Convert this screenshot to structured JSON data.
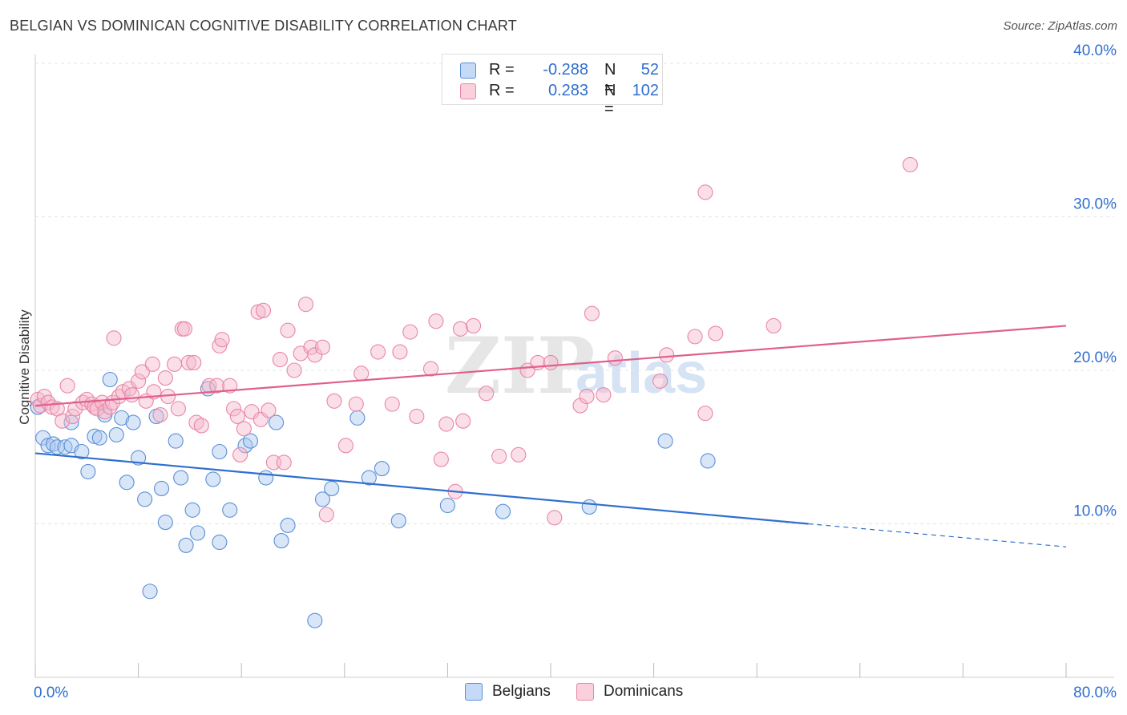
{
  "title": "BELGIAN VS DOMINICAN COGNITIVE DISABILITY CORRELATION CHART",
  "source": "Source: ZipAtlas.com",
  "watermark": {
    "zip": "ZIP",
    "atlas": "atlas"
  },
  "legend": {
    "r_label": "R =",
    "n_label": "N =",
    "rows": [
      {
        "r": "-0.288",
        "n": "52",
        "color": "#a9c8f0"
      },
      {
        "r": "0.283",
        "n": "102",
        "color": "#f5b8cb"
      }
    ]
  },
  "bottom_legend": [
    {
      "label": "Belgians",
      "color": "#a9c8f0"
    },
    {
      "label": "Dominicans",
      "color": "#f5b8cb"
    }
  ],
  "chart_data": {
    "type": "scatter",
    "ylabel": "Cognitive Disability",
    "xlim": [
      0,
      80
    ],
    "ylim": [
      0,
      40
    ],
    "x_tick_labels": [
      {
        "value": 0,
        "label": "0.0%"
      },
      {
        "value": 80,
        "label": "80.0%"
      }
    ],
    "y_tick_labels": [
      {
        "value": 10,
        "label": "10.0%"
      },
      {
        "value": 20,
        "label": "20.0%"
      },
      {
        "value": 30,
        "label": "30.0%"
      },
      {
        "value": 40,
        "label": "40.0%"
      }
    ],
    "grid": "horizontal-dashed",
    "series": [
      {
        "name": "Belgians",
        "color": "#5b8fd6",
        "fill": "#a9c8f0",
        "trend": {
          "x0": 0,
          "y0": 14.6,
          "x1": 60,
          "y1": 10.0,
          "dash_to_x": 80,
          "dash_to_y": 8.5,
          "color": "#2f6fcf"
        },
        "points": [
          [
            0.2,
            17.6
          ],
          [
            0.6,
            15.6
          ],
          [
            1.0,
            15.1
          ],
          [
            1.4,
            15.2
          ],
          [
            1.7,
            15.0
          ],
          [
            2.3,
            15.0
          ],
          [
            2.8,
            15.1
          ],
          [
            2.8,
            16.6
          ],
          [
            3.6,
            14.7
          ],
          [
            4.1,
            13.4
          ],
          [
            4.6,
            15.7
          ],
          [
            5.0,
            15.6
          ],
          [
            5.4,
            17.1
          ],
          [
            5.8,
            19.4
          ],
          [
            6.3,
            15.8
          ],
          [
            6.7,
            16.9
          ],
          [
            7.1,
            12.7
          ],
          [
            7.6,
            16.6
          ],
          [
            8.0,
            14.3
          ],
          [
            8.5,
            11.6
          ],
          [
            8.9,
            5.6
          ],
          [
            9.4,
            17.0
          ],
          [
            9.8,
            12.3
          ],
          [
            10.1,
            10.1
          ],
          [
            10.9,
            15.4
          ],
          [
            11.3,
            13.0
          ],
          [
            11.7,
            8.6
          ],
          [
            12.2,
            10.9
          ],
          [
            12.6,
            9.4
          ],
          [
            13.4,
            18.8
          ],
          [
            13.8,
            12.9
          ],
          [
            14.3,
            14.7
          ],
          [
            14.3,
            8.8
          ],
          [
            15.1,
            10.9
          ],
          [
            16.3,
            15.1
          ],
          [
            16.7,
            15.4
          ],
          [
            17.9,
            13.0
          ],
          [
            18.7,
            16.6
          ],
          [
            19.1,
            8.9
          ],
          [
            19.6,
            9.9
          ],
          [
            21.7,
            3.7
          ],
          [
            22.3,
            11.6
          ],
          [
            23.0,
            12.3
          ],
          [
            25.0,
            16.9
          ],
          [
            25.9,
            13.0
          ],
          [
            26.9,
            13.6
          ],
          [
            28.2,
            10.2
          ],
          [
            32.0,
            11.2
          ],
          [
            36.3,
            10.8
          ],
          [
            43.0,
            11.1
          ],
          [
            48.9,
            15.4
          ],
          [
            52.2,
            14.1
          ]
        ]
      },
      {
        "name": "Dominicans",
        "color": "#e986a6",
        "fill": "#f5b8cb",
        "trend": {
          "x0": 0,
          "y0": 17.7,
          "x1": 80,
          "y1": 22.9,
          "color": "#e0608a"
        },
        "points": [
          [
            0.2,
            18.1
          ],
          [
            0.4,
            17.7
          ],
          [
            0.7,
            18.3
          ],
          [
            1.0,
            17.9
          ],
          [
            1.3,
            17.6
          ],
          [
            1.7,
            17.5
          ],
          [
            2.1,
            16.7
          ],
          [
            2.5,
            19.0
          ],
          [
            2.9,
            17.0
          ],
          [
            3.1,
            17.5
          ],
          [
            3.7,
            17.9
          ],
          [
            4.0,
            18.1
          ],
          [
            4.4,
            17.8
          ],
          [
            4.6,
            17.6
          ],
          [
            4.8,
            17.5
          ],
          [
            5.2,
            17.9
          ],
          [
            5.4,
            17.3
          ],
          [
            5.8,
            17.6
          ],
          [
            6.0,
            17.9
          ],
          [
            6.1,
            22.1
          ],
          [
            6.5,
            18.3
          ],
          [
            6.8,
            18.6
          ],
          [
            7.3,
            18.8
          ],
          [
            7.5,
            18.4
          ],
          [
            8.0,
            19.3
          ],
          [
            8.3,
            19.9
          ],
          [
            8.6,
            18.0
          ],
          [
            9.1,
            20.4
          ],
          [
            9.2,
            18.6
          ],
          [
            9.7,
            17.1
          ],
          [
            10.1,
            19.5
          ],
          [
            10.3,
            18.3
          ],
          [
            10.8,
            20.4
          ],
          [
            11.1,
            17.5
          ],
          [
            11.4,
            22.7
          ],
          [
            11.6,
            22.7
          ],
          [
            11.9,
            20.5
          ],
          [
            12.3,
            20.5
          ],
          [
            12.5,
            16.6
          ],
          [
            12.9,
            16.4
          ],
          [
            13.5,
            19.0
          ],
          [
            14.1,
            19.0
          ],
          [
            14.3,
            21.6
          ],
          [
            14.5,
            22.0
          ],
          [
            15.1,
            19.0
          ],
          [
            15.4,
            17.5
          ],
          [
            15.7,
            17.0
          ],
          [
            15.9,
            14.5
          ],
          [
            16.2,
            16.2
          ],
          [
            16.8,
            17.3
          ],
          [
            17.3,
            23.8
          ],
          [
            17.5,
            16.8
          ],
          [
            17.7,
            23.9
          ],
          [
            18.1,
            17.4
          ],
          [
            18.5,
            14.0
          ],
          [
            19.0,
            20.7
          ],
          [
            19.3,
            14.0
          ],
          [
            19.6,
            22.6
          ],
          [
            20.1,
            20.0
          ],
          [
            20.6,
            21.1
          ],
          [
            21.0,
            24.3
          ],
          [
            21.4,
            21.5
          ],
          [
            21.7,
            21.0
          ],
          [
            22.3,
            21.5
          ],
          [
            22.6,
            10.6
          ],
          [
            23.2,
            18.0
          ],
          [
            24.1,
            15.1
          ],
          [
            24.9,
            17.8
          ],
          [
            25.3,
            19.8
          ],
          [
            26.6,
            21.2
          ],
          [
            27.7,
            17.8
          ],
          [
            28.3,
            21.2
          ],
          [
            29.1,
            22.5
          ],
          [
            29.6,
            17.0
          ],
          [
            30.7,
            20.1
          ],
          [
            31.1,
            23.2
          ],
          [
            31.5,
            14.2
          ],
          [
            31.9,
            16.5
          ],
          [
            32.6,
            12.1
          ],
          [
            33.0,
            22.7
          ],
          [
            33.2,
            16.7
          ],
          [
            34.0,
            22.9
          ],
          [
            35.0,
            18.5
          ],
          [
            36.0,
            14.4
          ],
          [
            37.5,
            14.5
          ],
          [
            38.2,
            20.0
          ],
          [
            39.0,
            20.5
          ],
          [
            40.0,
            20.5
          ],
          [
            40.3,
            10.4
          ],
          [
            42.3,
            17.7
          ],
          [
            43.2,
            23.7
          ],
          [
            44.1,
            18.4
          ],
          [
            45.0,
            20.8
          ],
          [
            48.5,
            19.3
          ],
          [
            49.0,
            21.0
          ],
          [
            51.2,
            22.2
          ],
          [
            52.0,
            17.2
          ],
          [
            52.0,
            31.6
          ],
          [
            52.8,
            22.4
          ],
          [
            57.3,
            22.9
          ],
          [
            67.9,
            33.4
          ],
          [
            42.8,
            18.3
          ]
        ]
      }
    ]
  }
}
